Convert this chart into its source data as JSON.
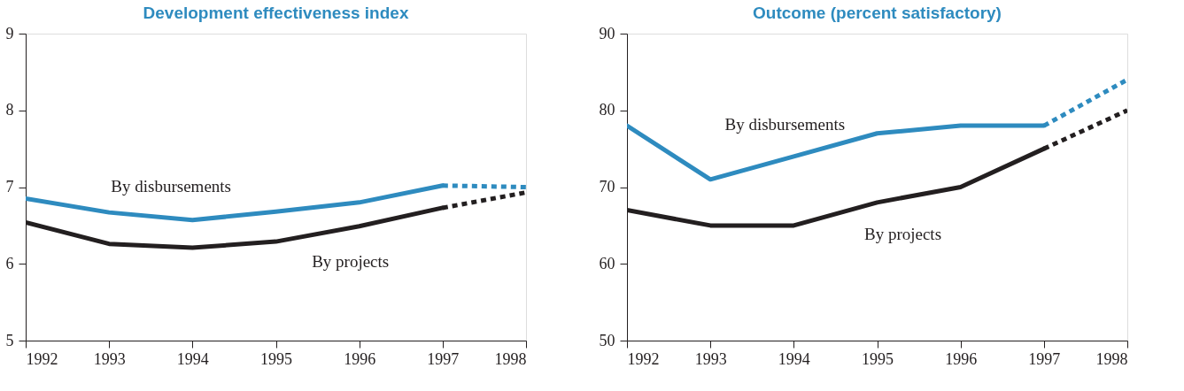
{
  "chart_data": [
    {
      "type": "line",
      "title": "Development effectiveness index",
      "x": [
        1992,
        1993,
        1994,
        1995,
        1996,
        1997,
        1998
      ],
      "xlim": [
        1992,
        1998
      ],
      "xticks": [
        1992,
        1993,
        1994,
        1995,
        1996,
        1997,
        1998
      ],
      "ylim": [
        5,
        9
      ],
      "yticks": [
        5,
        6,
        7,
        8,
        9
      ],
      "grid": false,
      "legend": false,
      "series": [
        {
          "name": "By disbursements",
          "color": "#2e8bbf",
          "line_style": "solid",
          "values": [
            6.85,
            6.67,
            6.57,
            6.68,
            6.8,
            7.02,
            null
          ]
        },
        {
          "color": "#2e8bbf",
          "line_style": "dotted",
          "values": [
            null,
            null,
            null,
            null,
            null,
            7.02,
            7.0
          ]
        },
        {
          "name": "By projects",
          "color": "#231f20",
          "line_style": "solid",
          "values": [
            6.54,
            6.26,
            6.21,
            6.29,
            6.49,
            6.73,
            null
          ]
        },
        {
          "color": "#231f20",
          "line_style": "dotted",
          "values": [
            null,
            null,
            null,
            null,
            null,
            6.73,
            6.93
          ]
        }
      ]
    },
    {
      "type": "line",
      "title": "Outcome (percent satisfactory)",
      "x": [
        1992,
        1993,
        1994,
        1995,
        1996,
        1997,
        1998
      ],
      "xlim": [
        1992,
        1998
      ],
      "xticks": [
        1992,
        1993,
        1994,
        1995,
        1996,
        1997,
        1998
      ],
      "ylim": [
        50,
        90
      ],
      "yticks": [
        50,
        60,
        70,
        80,
        90
      ],
      "grid": false,
      "legend": false,
      "series": [
        {
          "name": "By disbursements",
          "color": "#2e8bbf",
          "line_style": "solid",
          "values": [
            78,
            71,
            74,
            77,
            78,
            78,
            null
          ]
        },
        {
          "color": "#2e8bbf",
          "line_style": "dotted",
          "values": [
            null,
            null,
            null,
            null,
            null,
            78,
            84
          ]
        },
        {
          "name": "By projects",
          "color": "#231f20",
          "line_style": "solid",
          "values": [
            67,
            65,
            65,
            68,
            70,
            75,
            null
          ]
        },
        {
          "color": "#231f20",
          "line_style": "dotted",
          "values": [
            null,
            null,
            null,
            null,
            null,
            75,
            80
          ]
        }
      ]
    }
  ]
}
